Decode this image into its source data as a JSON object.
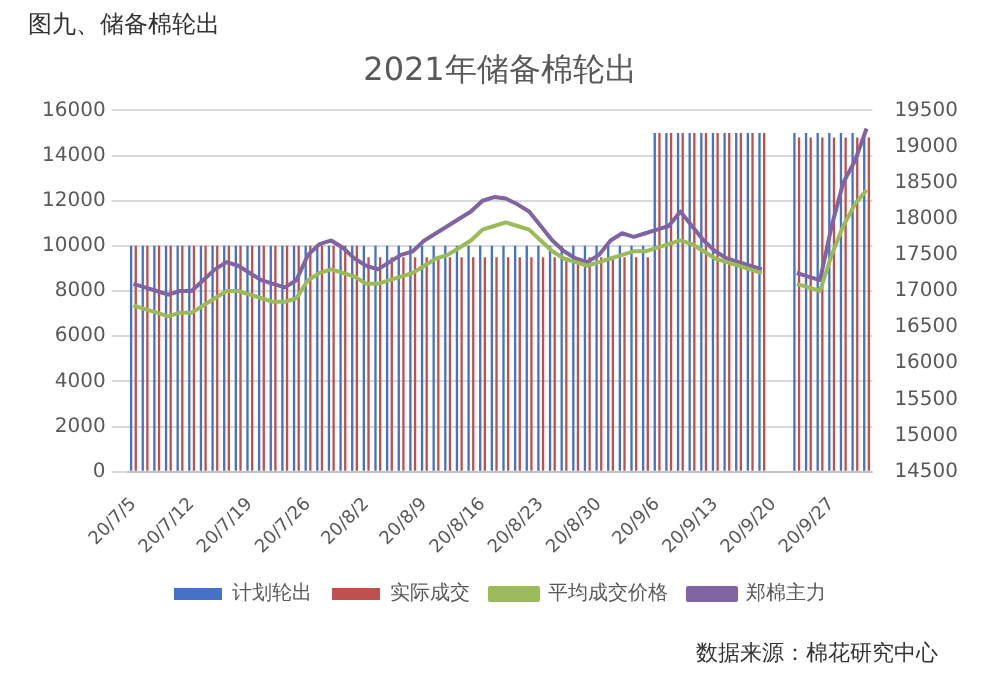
{
  "chart_data": {
    "type": "bar",
    "title": "2021年储备棉轮出",
    "annotations": [
      "图九、储备棉轮出",
      "数据来源：棉花研究中心"
    ],
    "categories": [
      "20/7/5",
      null,
      null,
      null,
      null,
      "20/7/12",
      null,
      null,
      null,
      null,
      "20/7/19",
      null,
      null,
      null,
      null,
      "20/7/26",
      null,
      null,
      null,
      null,
      "20/8/2",
      null,
      null,
      null,
      null,
      "20/8/9",
      null,
      null,
      null,
      null,
      "20/8/16",
      null,
      null,
      null,
      null,
      "20/8/23",
      null,
      null,
      null,
      null,
      "20/8/30",
      null,
      null,
      null,
      null,
      "20/9/6",
      null,
      null,
      null,
      null,
      "20/9/13",
      null,
      null,
      null,
      null,
      "20/9/20",
      null,
      null,
      null,
      null,
      "20/9/27",
      null,
      null,
      null
    ],
    "series": [
      {
        "name": "计划轮出",
        "color": "#4472c4",
        "values": [
          10000,
          10000,
          10000,
          10000,
          10000,
          10000,
          10000,
          10000,
          10000,
          10000,
          10000,
          10000,
          10000,
          10000,
          10000,
          10000,
          10000,
          10000,
          10000,
          10000,
          10000,
          10000,
          10000,
          10000,
          10000,
          10000,
          10000,
          10000,
          10000,
          10000,
          10000,
          10000,
          10000,
          10000,
          10000,
          10000,
          10000,
          10000,
          10000,
          10000,
          10000,
          10000,
          10000,
          10000,
          10000,
          15000,
          15000,
          15000,
          15000,
          15000,
          15000,
          15000,
          15000,
          15000,
          15000,
          null,
          null,
          15000,
          15000,
          15000,
          15000,
          15000,
          15000,
          15000
        ]
      },
      {
        "name": "实际成交",
        "color": "#c0504d",
        "values": [
          10000,
          10000,
          10000,
          10000,
          10000,
          10000,
          10000,
          10000,
          10000,
          10000,
          10000,
          10000,
          10000,
          10000,
          10000,
          10000,
          10000,
          10000,
          10000,
          10000,
          9500,
          9500,
          9500,
          9500,
          9500,
          9500,
          9500,
          9500,
          9500,
          9500,
          9500,
          9500,
          9500,
          9500,
          9500,
          9500,
          9500,
          9500,
          9500,
          9500,
          9500,
          9500,
          9500,
          9500,
          9500,
          15000,
          15000,
          15000,
          15000,
          15000,
          15000,
          15000,
          15000,
          15000,
          15000,
          null,
          null,
          14800,
          14800,
          14800,
          14800,
          14800,
          14800,
          14800
        ]
      },
      {
        "name": "平均成交价格",
        "type": "line",
        "axis": "y2",
        "color": "#9bbb59",
        "values": [
          16800,
          16750,
          16700,
          16650,
          16700,
          16700,
          16800,
          16900,
          17000,
          17000,
          16950,
          16900,
          16850,
          16850,
          16900,
          17150,
          17250,
          17300,
          17250,
          17200,
          17100,
          17100,
          17150,
          17200,
          17250,
          17350,
          17450,
          17500,
          17600,
          17700,
          17850,
          17900,
          17950,
          17900,
          17850,
          17700,
          17550,
          17450,
          17400,
          17350,
          17400,
          17450,
          17500,
          17550,
          17550,
          17600,
          17650,
          17700,
          17650,
          17550,
          17450,
          17400,
          17350,
          17300,
          17250,
          null,
          null,
          17100,
          17050,
          17000,
          17500,
          17900,
          18200,
          18400
        ]
      },
      {
        "name": "郑棉主力",
        "type": "line",
        "axis": "y2",
        "color": "#8064a2",
        "values": [
          17100,
          17050,
          17000,
          16950,
          17000,
          17000,
          17150,
          17300,
          17400,
          17350,
          17250,
          17150,
          17100,
          17050,
          17150,
          17500,
          17650,
          17700,
          17600,
          17450,
          17350,
          17300,
          17400,
          17500,
          17550,
          17700,
          17800,
          17900,
          18000,
          18100,
          18250,
          18300,
          18280,
          18200,
          18100,
          17900,
          17700,
          17550,
          17450,
          17400,
          17500,
          17700,
          17800,
          17750,
          17800,
          17850,
          17900,
          18100,
          17900,
          17700,
          17550,
          17450,
          17400,
          17350,
          17300,
          null,
          null,
          17250,
          17200,
          17150,
          17900,
          18500,
          18800,
          19250
        ]
      }
    ],
    "ylim": [
      0,
      16000
    ],
    "yticks": [
      0,
      2000,
      4000,
      6000,
      8000,
      10000,
      12000,
      14000,
      16000
    ],
    "y2lim": [
      14500,
      19500
    ],
    "y2ticks": [
      14500,
      15000,
      15500,
      16000,
      16500,
      17000,
      17500,
      18000,
      18500,
      19000,
      19500
    ],
    "grid": "y",
    "legend": "bottom",
    "marker": "none"
  }
}
